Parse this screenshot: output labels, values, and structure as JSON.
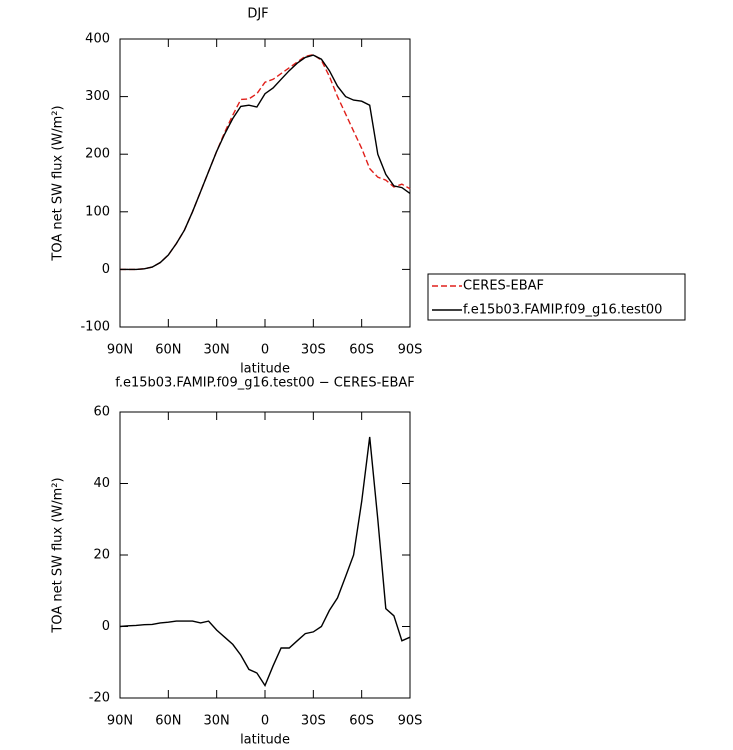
{
  "chart_data": [
    {
      "type": "line",
      "title": "DJF",
      "xlabel": "latitude",
      "ylabel": "TOA net SW flux (W/m²)",
      "x": [
        90,
        85,
        80,
        75,
        70,
        65,
        60,
        55,
        50,
        45,
        40,
        35,
        30,
        25,
        20,
        15,
        10,
        5,
        0,
        -5,
        -10,
        -15,
        -20,
        -25,
        -30,
        -35,
        -40,
        -45,
        -50,
        -55,
        -60,
        -65,
        -70,
        -75,
        -80,
        -85,
        -90
      ],
      "series": [
        {
          "name": "CERES-EBAF",
          "color": "#e0201b",
          "dash": true,
          "values": [
            0,
            0,
            0,
            1,
            4,
            12,
            25,
            45,
            68,
            100,
            135,
            170,
            205,
            238,
            268,
            295,
            296,
            305,
            325,
            330,
            340,
            350,
            360,
            370,
            373,
            363,
            335,
            300,
            270,
            240,
            210,
            175,
            160,
            155,
            143,
            148,
            140
          ]
        },
        {
          "name": "f.e15b03.FAMIP.f09_g16.test00",
          "color": "#000000",
          "dash": false,
          "values": [
            0,
            0,
            0,
            1,
            4,
            12,
            25,
            45,
            68,
            100,
            135,
            170,
            205,
            235,
            262,
            283,
            285,
            282,
            305,
            315,
            330,
            345,
            358,
            368,
            372,
            365,
            345,
            318,
            300,
            294,
            292,
            285,
            200,
            165,
            145,
            142,
            132
          ]
        }
      ],
      "xlim": [
        90,
        -90
      ],
      "xticks": [
        {
          "value": 90,
          "label": "90N"
        },
        {
          "value": 60,
          "label": "60N"
        },
        {
          "value": 30,
          "label": "30N"
        },
        0,
        {
          "value": -30,
          "label": "30S"
        },
        {
          "value": -60,
          "label": "60S"
        },
        {
          "value": -90,
          "label": "90S"
        }
      ],
      "ylim": [
        -100,
        400
      ],
      "yticks": [
        -100,
        0,
        100,
        200,
        300,
        400
      ]
    },
    {
      "type": "line",
      "title": "f.e15b03.FAMIP.f09_g16.test00 − CERES-EBAF",
      "xlabel": "latitude",
      "ylabel": "TOA net SW flux (W/m²)",
      "x": [
        90,
        85,
        80,
        75,
        70,
        65,
        60,
        55,
        50,
        45,
        40,
        35,
        30,
        25,
        20,
        15,
        10,
        5,
        0,
        -5,
        -10,
        -15,
        -20,
        -25,
        -30,
        -35,
        -40,
        -45,
        -50,
        -55,
        -60,
        -65,
        -70,
        -75,
        -80,
        -85,
        -90
      ],
      "values": [
        0,
        0.2,
        0.3,
        0.5,
        0.6,
        1,
        1.2,
        1.5,
        1.5,
        1.5,
        1,
        1.5,
        -1,
        -3,
        -5,
        -8,
        -12,
        -13,
        -16.5,
        -11,
        -6,
        -6,
        -4,
        -2,
        -1.5,
        0,
        4.5,
        8,
        14,
        20,
        35,
        53,
        30,
        5,
        3,
        -4,
        -3
      ],
      "color": "#000000",
      "xlim": [
        90,
        -90
      ],
      "xticks": [
        {
          "value": 90,
          "label": "90N"
        },
        {
          "value": 60,
          "label": "60N"
        },
        {
          "value": 30,
          "label": "30N"
        },
        0,
        {
          "value": -30,
          "label": "30S"
        },
        {
          "value": -60,
          "label": "60S"
        },
        {
          "value": -90,
          "label": "90S"
        }
      ],
      "ylim": [
        -20,
        60
      ],
      "yticks": [
        -20,
        0,
        20,
        40,
        60
      ]
    }
  ]
}
